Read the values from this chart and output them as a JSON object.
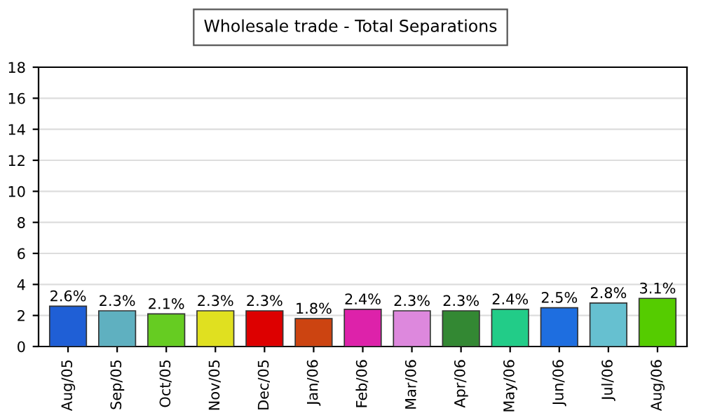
{
  "chart_data": {
    "type": "bar",
    "title": "Wholesale trade - Total Separations",
    "categories": [
      "Aug/05",
      "Sep/05",
      "Oct/05",
      "Nov/05",
      "Dec/05",
      "Jan/06",
      "Feb/06",
      "Mar/06",
      "Apr/06",
      "May/06",
      "Jun/06",
      "Jul/06",
      "Aug/06"
    ],
    "values": [
      2.6,
      2.3,
      2.1,
      2.3,
      2.3,
      1.8,
      2.4,
      2.3,
      2.3,
      2.4,
      2.5,
      2.8,
      3.1
    ],
    "value_labels": [
      "2.6%",
      "2.3%",
      "2.1%",
      "2.3%",
      "2.3%",
      "1.8%",
      "2.4%",
      "2.3%",
      "2.3%",
      "2.4%",
      "2.5%",
      "2.8%",
      "3.1%"
    ],
    "colors": [
      "#1f5fd6",
      "#5fb0c0",
      "#66cc22",
      "#e0e020",
      "#dd0000",
      "#cc4411",
      "#dd22aa",
      "#dd88dd",
      "#338833",
      "#22cc88",
      "#1e6ee0",
      "#66c0d0",
      "#55cc00"
    ],
    "ylim": [
      0,
      18
    ],
    "yticks": [
      0,
      2,
      4,
      6,
      8,
      10,
      12,
      14,
      16,
      18
    ],
    "grid": "y"
  }
}
